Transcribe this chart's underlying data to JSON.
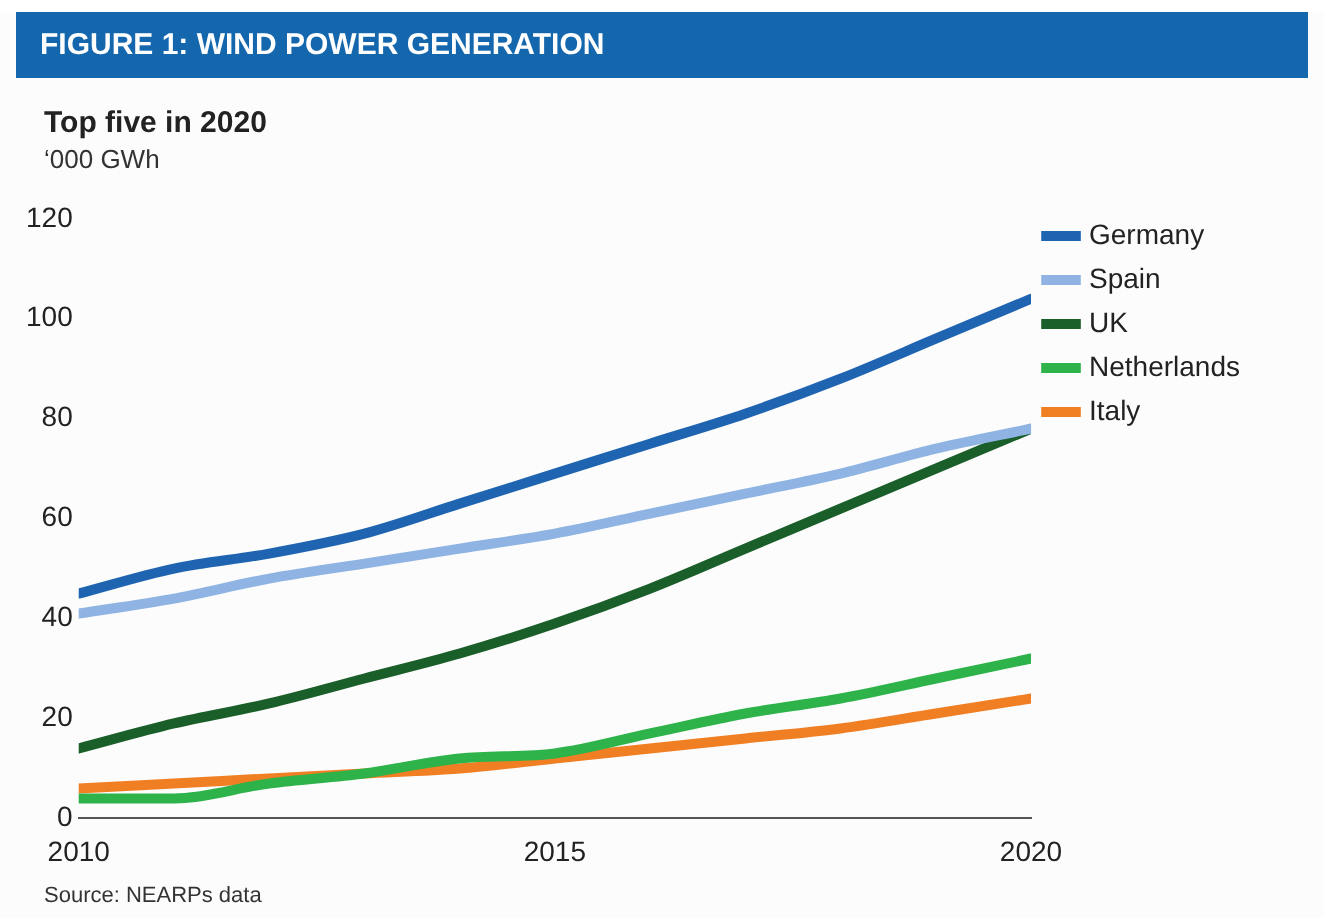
{
  "chart_data": {
    "type": "line",
    "title": "FIGURE 1: WIND POWER GENERATION",
    "subtitle": "Top five in 2020",
    "ylabel": "‘000 GWh",
    "x": [
      2010,
      2011,
      2012,
      2013,
      2014,
      2015,
      2016,
      2017,
      2018,
      2019,
      2020
    ],
    "series": [
      {
        "name": "Germany",
        "color": "#1f64b0",
        "values": [
          45,
          50,
          53,
          57,
          63,
          69,
          75,
          81,
          88,
          96,
          104
        ]
      },
      {
        "name": "Spain",
        "color": "#8fb4e3",
        "values": [
          41,
          44,
          48,
          51,
          54,
          57,
          61,
          65,
          69,
          74,
          78
        ]
      },
      {
        "name": "UK",
        "color": "#1a5e2a",
        "values": [
          14,
          19,
          23,
          28,
          33,
          39,
          46,
          54,
          62,
          70,
          78
        ]
      },
      {
        "name": "Netherlands",
        "color": "#2db34a",
        "values": [
          4,
          4,
          7,
          9,
          12,
          13,
          17,
          21,
          24,
          28,
          32
        ]
      },
      {
        "name": "Italy",
        "color": "#f07f23",
        "values": [
          6,
          7,
          8,
          9,
          10,
          12,
          14,
          16,
          18,
          21,
          24
        ]
      }
    ],
    "xlim": [
      2010,
      2020
    ],
    "xticks": [
      2010,
      2015,
      2020
    ],
    "ylim": [
      0,
      120
    ],
    "yticks": [
      0,
      20,
      40,
      60,
      80,
      100,
      120
    ],
    "grid": false,
    "legend": "top right",
    "marker": "none",
    "line_style": "solid",
    "annotations": [
      "Source: NEARPs data"
    ]
  }
}
